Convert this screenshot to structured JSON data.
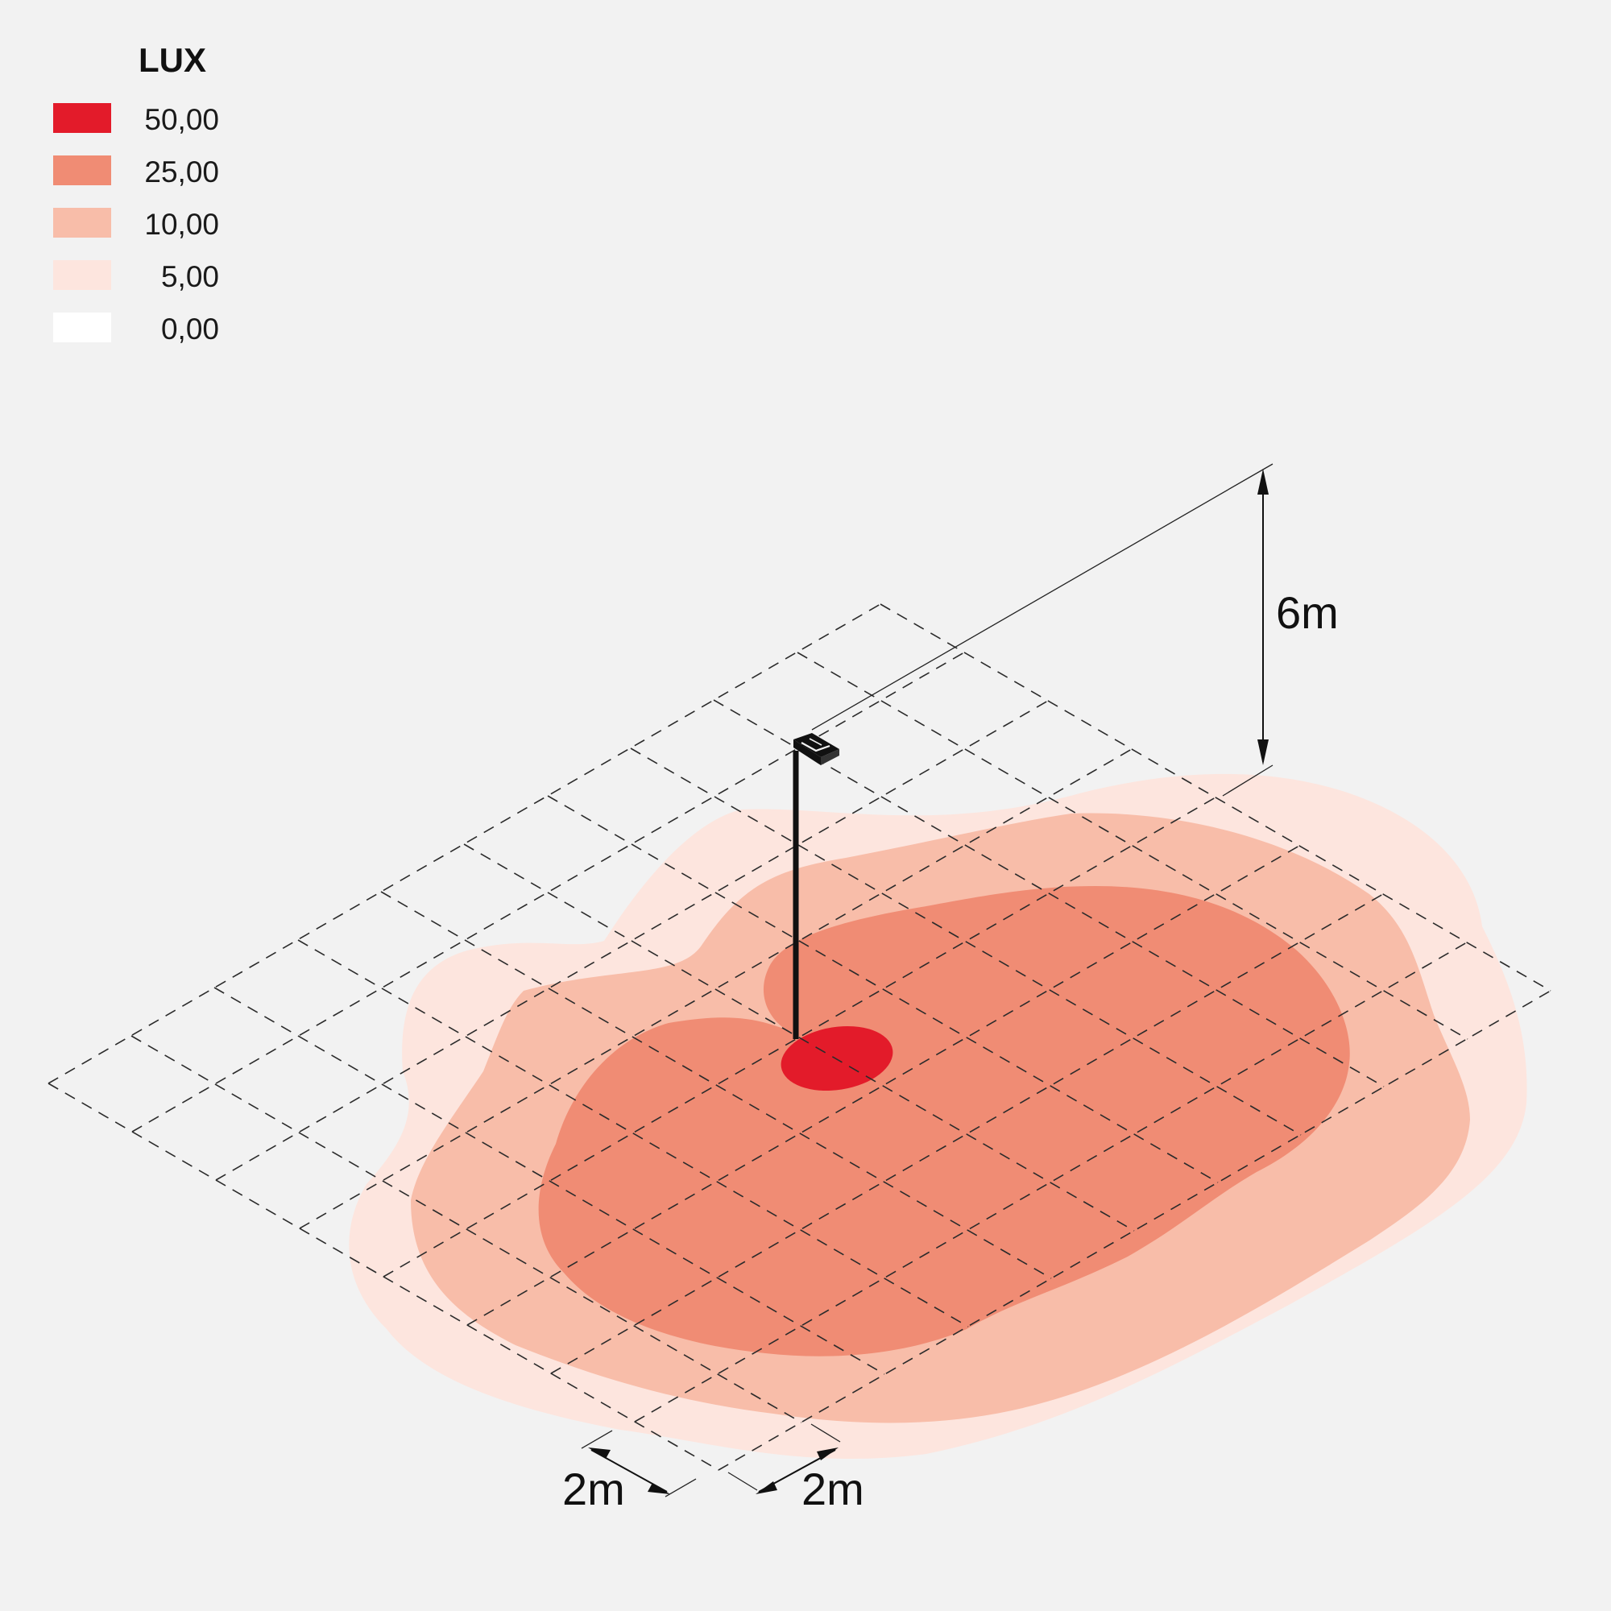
{
  "legend": {
    "title": "LUX",
    "items": [
      {
        "label": "50,00",
        "color": "#e31b2a"
      },
      {
        "label": "25,00",
        "color": "#f08c74"
      },
      {
        "label": "10,00",
        "color": "#f8bda9"
      },
      {
        "label": "5,00",
        "color": "#fde5de"
      },
      {
        "label": "0,00",
        "color": "#ffffff"
      }
    ]
  },
  "dimensions": {
    "height": "6m",
    "grid_x": "2m",
    "grid_y": "2m"
  },
  "icons": {
    "luminaire": "floodlight-icon"
  }
}
